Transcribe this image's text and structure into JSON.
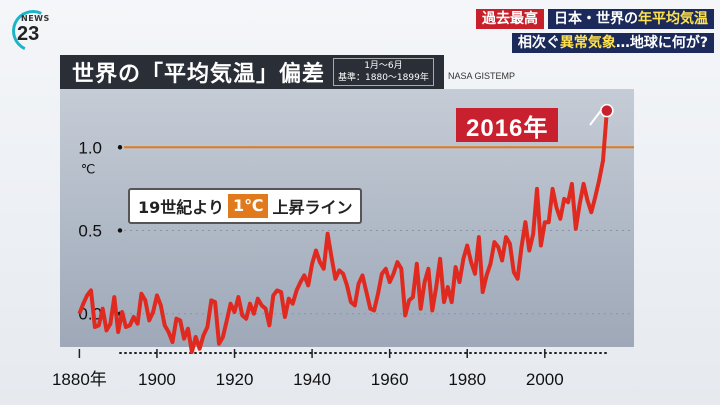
{
  "logo": {
    "news": "NEWS",
    "num": "23"
  },
  "ticker": {
    "badge": "過去最高",
    "line1_pre": "日本・世界の",
    "line1_hl": "年平均気温",
    "line2_pre": "相次ぐ",
    "line2_hl": "異常気象",
    "line2_post": "…地球に何が?"
  },
  "title": {
    "main": "世界の「平均気温」偏差",
    "period": "1月〜6月",
    "baseline": "基準：1880〜1899年"
  },
  "source": "NASA GISTEMP",
  "callout": {
    "pre": "19世紀より",
    "deg": "1℃",
    "post": "上昇ライン"
  },
  "highlight_label": "2016年",
  "colors": {
    "line": "#e02a1f",
    "threshold": "#e07a1c",
    "highlight": "#c9202f"
  },
  "chart_data": {
    "type": "line",
    "ylabel": "℃",
    "x_tick_labels": [
      "1880年",
      "1900",
      "1920",
      "1940",
      "1960",
      "1980",
      "2000"
    ],
    "x_ticks": [
      1880,
      1900,
      1920,
      1940,
      1960,
      1980,
      2000
    ],
    "y_ticks": [
      0.0,
      0.5,
      1.0
    ],
    "y_tick_labels": [
      "0.0",
      "0.5",
      "1.0"
    ],
    "xlim": [
      1875,
      2023
    ],
    "ylim": [
      -0.2,
      1.35
    ],
    "threshold": 1.0,
    "highlight_year": 2016,
    "highlight_value": 1.22,
    "series": [
      {
        "years": [
          1880,
          1881,
          1882,
          1883,
          1884,
          1885,
          1886,
          1887,
          1888,
          1889,
          1890,
          1891,
          1892,
          1893,
          1894,
          1895,
          1896,
          1897,
          1898,
          1899,
          1900,
          1901,
          1902,
          1903,
          1904,
          1905,
          1906,
          1907,
          1908,
          1909,
          1910,
          1911,
          1912,
          1913,
          1914,
          1915,
          1916,
          1917,
          1918,
          1919,
          1920,
          1921,
          1922,
          1923,
          1924,
          1925,
          1926,
          1927,
          1928,
          1929,
          1930,
          1931,
          1932,
          1933,
          1934,
          1935,
          1936,
          1937,
          1938,
          1939,
          1940,
          1941,
          1942,
          1943,
          1944,
          1945,
          1946,
          1947,
          1948,
          1949,
          1950,
          1951,
          1952,
          1953,
          1954,
          1955,
          1956,
          1957,
          1958,
          1959,
          1960,
          1961,
          1962,
          1963,
          1964,
          1965,
          1966,
          1967,
          1968,
          1969,
          1970,
          1971,
          1972,
          1973,
          1974,
          1975,
          1976,
          1977,
          1978,
          1979,
          1980,
          1981,
          1982,
          1983,
          1984,
          1985,
          1986,
          1987,
          1988,
          1989,
          1990,
          1991,
          1992,
          1993,
          1994,
          1995,
          1996,
          1997,
          1998,
          1999,
          2000,
          2001,
          2002,
          2003,
          2004,
          2005,
          2006,
          2007,
          2008,
          2009,
          2010,
          2011,
          2012,
          2013,
          2014,
          2015,
          2016
        ],
        "values": [
          0.0,
          0.06,
          0.11,
          0.14,
          -0.08,
          -0.07,
          0.03,
          -0.1,
          -0.06,
          0.1,
          -0.11,
          0.01,
          -0.08,
          -0.07,
          -0.02,
          -0.06,
          0.12,
          0.08,
          -0.04,
          0.01,
          0.11,
          0.05,
          -0.07,
          -0.11,
          -0.17,
          -0.03,
          -0.04,
          -0.15,
          -0.09,
          -0.23,
          -0.14,
          -0.21,
          -0.13,
          -0.08,
          0.08,
          0.07,
          -0.18,
          -0.14,
          -0.04,
          0.06,
          0.01,
          0.1,
          -0.01,
          -0.03,
          0.06,
          0.0,
          0.09,
          0.05,
          0.03,
          -0.07,
          0.11,
          0.14,
          0.13,
          -0.02,
          0.09,
          0.06,
          0.14,
          0.19,
          0.23,
          0.17,
          0.3,
          0.38,
          0.31,
          0.27,
          0.48,
          0.34,
          0.21,
          0.26,
          0.24,
          0.17,
          0.07,
          0.05,
          0.18,
          0.23,
          0.13,
          0.03,
          0.02,
          0.12,
          0.24,
          0.27,
          0.19,
          0.24,
          0.31,
          0.27,
          -0.01,
          0.08,
          0.1,
          0.3,
          0.03,
          0.19,
          0.27,
          0.02,
          0.16,
          0.33,
          0.07,
          0.16,
          0.07,
          0.28,
          0.19,
          0.33,
          0.41,
          0.31,
          0.24,
          0.46,
          0.13,
          0.23,
          0.3,
          0.43,
          0.4,
          0.32,
          0.46,
          0.42,
          0.25,
          0.21,
          0.4,
          0.55,
          0.38,
          0.48,
          0.75,
          0.41,
          0.55,
          0.55,
          0.75,
          0.64,
          0.57,
          0.69,
          0.67,
          0.78,
          0.51,
          0.66,
          0.78,
          0.68,
          0.61,
          0.7,
          0.8,
          0.92,
          1.22
        ]
      }
    ]
  }
}
